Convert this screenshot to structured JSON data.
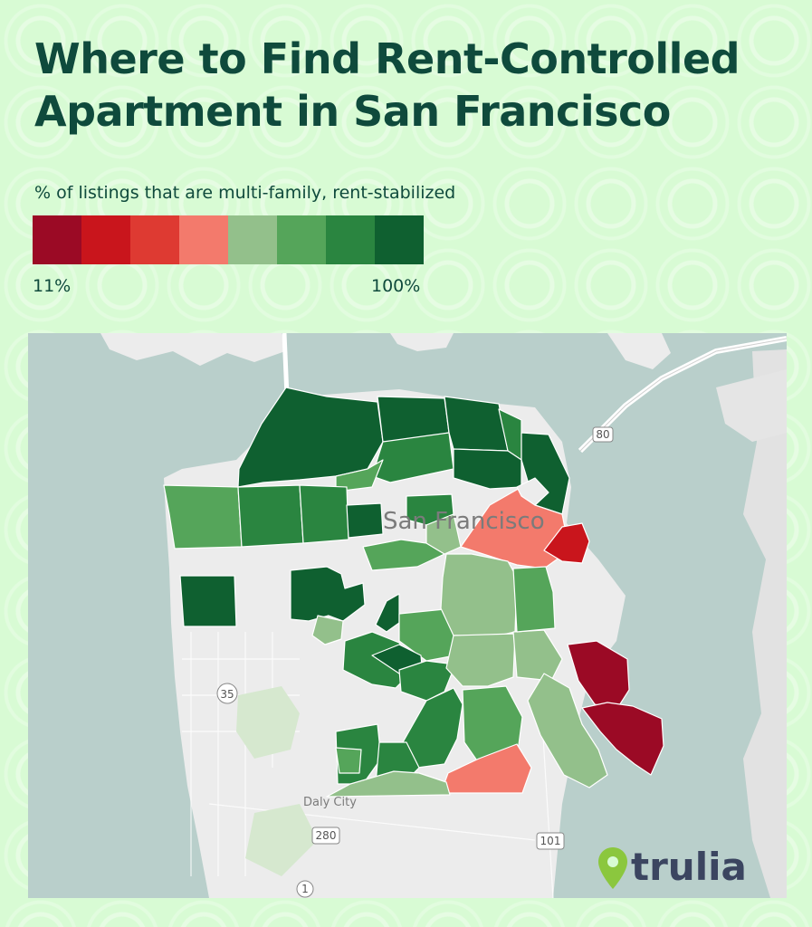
{
  "title": "Where to Find Rent-Controlled Apartment in San Francisco",
  "legend": {
    "title": "% of listings that are multi-family, rent-stabilized",
    "min_label": "11%",
    "max_label": "100%",
    "colors": [
      "#9b0a25",
      "#c9151c",
      "#de3a32",
      "#f37a6c",
      "#93c08b",
      "#55a55a",
      "#2a8540",
      "#0f6030"
    ]
  },
  "map": {
    "city_label": "San Francisco",
    "secondary_label": "Daly City",
    "road_shields": [
      "80",
      "35",
      "280",
      "101",
      "1"
    ]
  },
  "brand": {
    "name": "trulia",
    "accent_color": "#8bc73e",
    "text_color": "#3b4560"
  },
  "colors": {
    "water": "#b9cfcb",
    "land": "#ececec",
    "title": "#0f4a3c"
  }
}
